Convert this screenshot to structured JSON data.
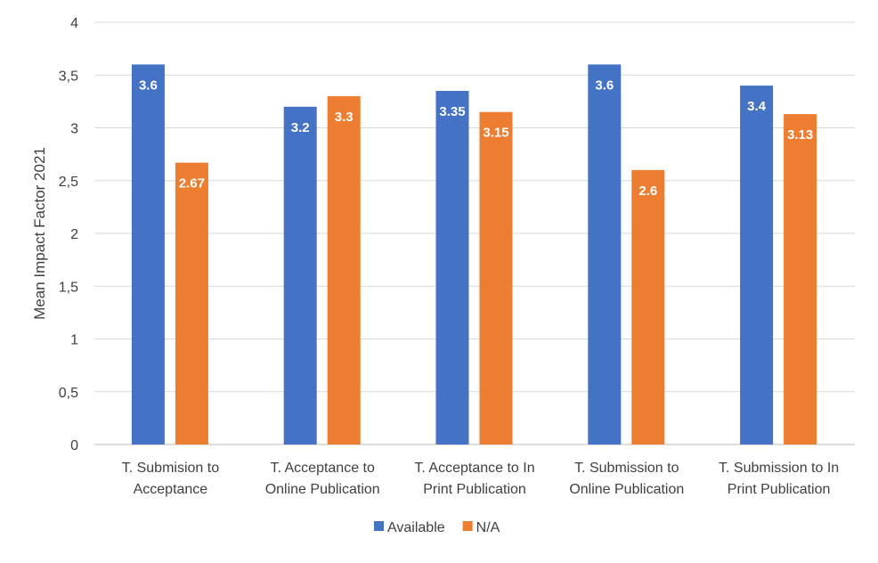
{
  "chart_data": {
    "type": "bar",
    "title": "",
    "xlabel": "",
    "ylabel": "Mean Impact Factor 2021",
    "ylim": [
      0,
      4
    ],
    "yticks": [
      "0",
      "0,5",
      "1",
      "1,5",
      "2",
      "2,5",
      "3",
      "3,5",
      "4"
    ],
    "grid": true,
    "legend_position": "bottom",
    "categories": [
      [
        "T. Submision to",
        "Acceptance"
      ],
      [
        "T. Acceptance to",
        "Online Publication"
      ],
      [
        "T. Acceptance to In",
        "Print Publication"
      ],
      [
        "T. Submission to",
        "Online Publication"
      ],
      [
        "T. Submission to In",
        "Print Publication"
      ]
    ],
    "series": [
      {
        "name": "Available",
        "color": "#4472C4",
        "values": [
          3.6,
          3.2,
          3.35,
          3.6,
          3.4
        ],
        "labels": [
          "3.6",
          "3.2",
          "3.35",
          "3.6",
          "3.4"
        ]
      },
      {
        "name": "N/A",
        "color": "#ED7D31",
        "values": [
          2.67,
          3.3,
          3.15,
          2.6,
          3.13
        ],
        "labels": [
          "2.67",
          "3.3",
          "3.15",
          "2.6",
          "3.13"
        ]
      }
    ]
  }
}
